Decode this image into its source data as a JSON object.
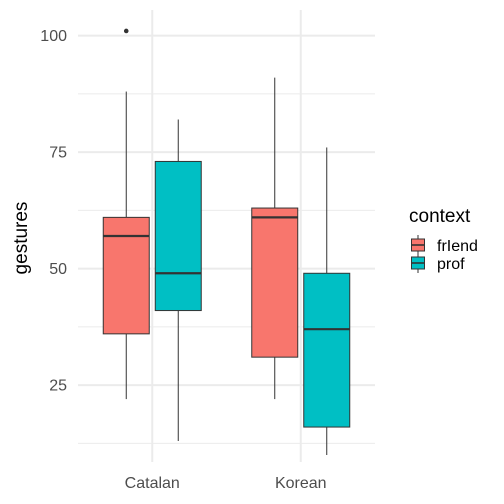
{
  "chart_data": {
    "type": "boxplot",
    "ylabel": "gestures",
    "xlabel": "",
    "categories": [
      "Catalan",
      "Korean"
    ],
    "ylim": [
      8.5,
      105.5
    ],
    "y_ticks": [
      25,
      50,
      75,
      100
    ],
    "grid": true,
    "legend_position": "right",
    "legend": {
      "title": "context",
      "entries": [
        {
          "name": "frIend",
          "color": "#F8766D"
        },
        {
          "name": "prof",
          "color": "#00BFC4"
        }
      ]
    },
    "series": [
      {
        "name": "frIend",
        "color": "#F8766D",
        "boxes": [
          {
            "category": "Catalan",
            "whisker_low": 22,
            "q1": 36,
            "median": 57,
            "q3": 61,
            "whisker_high": 88,
            "outliers": [
              101
            ]
          },
          {
            "category": "Korean",
            "whisker_low": 22,
            "q1": 31,
            "median": 61,
            "q3": 63,
            "whisker_high": 91,
            "outliers": []
          }
        ]
      },
      {
        "name": "prof",
        "color": "#00BFC4",
        "boxes": [
          {
            "category": "Catalan",
            "whisker_low": 13,
            "q1": 41,
            "median": 49,
            "q3": 73,
            "whisker_high": 82,
            "outliers": []
          },
          {
            "category": "Korean",
            "whisker_low": 10,
            "q1": 16,
            "median": 37,
            "q3": 49,
            "whisker_high": 76,
            "outliers": []
          }
        ]
      }
    ]
  }
}
